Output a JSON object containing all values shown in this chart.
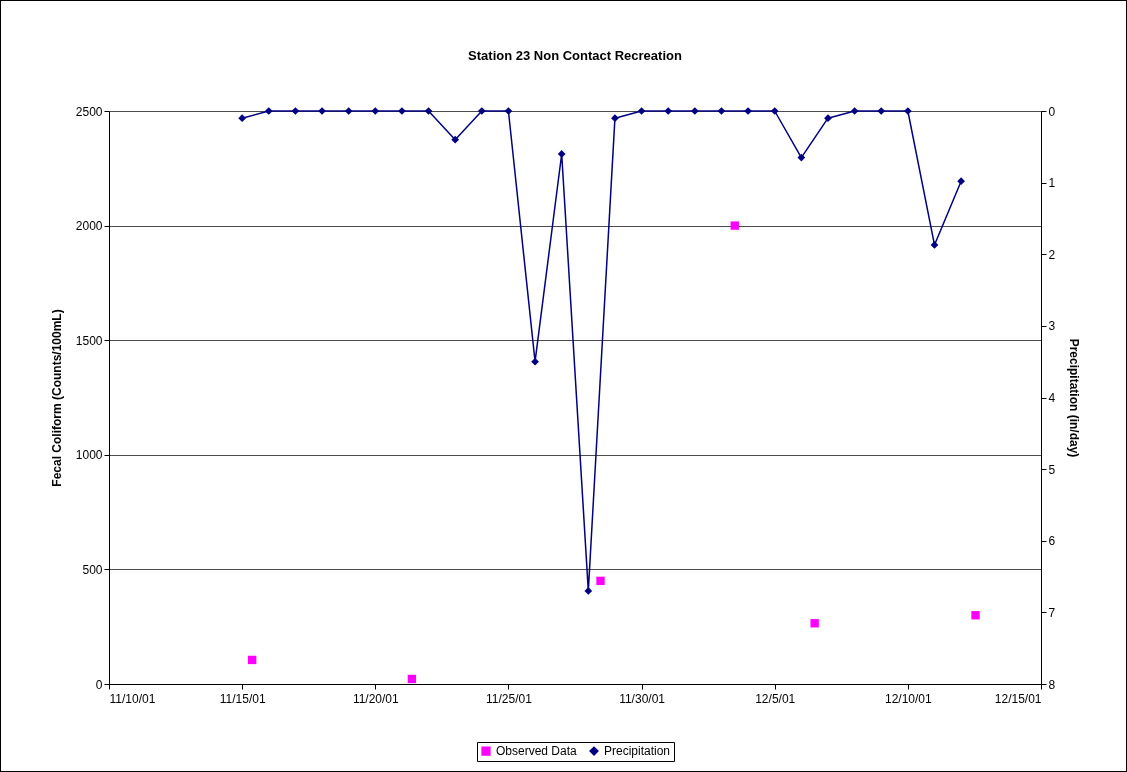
{
  "chart_data": {
    "type": "line",
    "title": "Station 23 Non Contact Recreation",
    "ylabel": "Fecal Coliform (Counts/100mL)",
    "y2label": "Precipitation (in/day)",
    "xlim": [
      "--11-10",
      "--12-15"
    ],
    "xticks": [
      {
        "value": "--11-10",
        "label": "11/10/01"
      },
      {
        "value": "--11-15",
        "label": "11/15/01"
      },
      {
        "value": "--11-20",
        "label": "11/20/01"
      },
      {
        "value": "--11-25",
        "label": "11/25/01"
      },
      {
        "value": "--11-30",
        "label": "11/30/01"
      },
      {
        "value": "--12-05",
        "label": "12/5/01"
      },
      {
        "value": "--12-10",
        "label": "12/10/01"
      },
      {
        "value": "--12-15",
        "label": "12/15/01"
      }
    ],
    "ylim": [
      0,
      2500
    ],
    "yticks": [
      0,
      500,
      1000,
      1500,
      2000,
      2500
    ],
    "y2lim": [
      8,
      0
    ],
    "y2ticks": [
      0,
      1,
      2,
      3,
      4,
      5,
      6,
      7,
      8
    ],
    "grid": "y",
    "legend": "bottom",
    "series": [
      {
        "name": "Observed Data",
        "type": "scatter",
        "marker": "square",
        "color": "#ff00ff",
        "x": [
          "--11-15T09:00",
          "--11-21T09:00",
          "--11-28T11:00",
          "--12-03T12:00",
          "--12-06T12:00",
          "--12-12T13:00"
        ],
        "values": [
          105,
          22,
          450,
          2000,
          265,
          300
        ]
      },
      {
        "name": "Precipitation",
        "marker": "diamond",
        "axis": "y2",
        "color": "#000080",
        "x": [
          "--11-15",
          "--11-16",
          "--11-17",
          "--11-18",
          "--11-19",
          "--11-20",
          "--11-21",
          "--11-22",
          "--11-23",
          "--11-24",
          "--11-25",
          "--11-26",
          "--11-27",
          "--11-28",
          "--11-29",
          "--11-30",
          "--12-01",
          "--12-02",
          "--12-03",
          "--12-04",
          "--12-05",
          "--12-06",
          "--12-07",
          "--12-08",
          "--12-09",
          "--12-10",
          "--12-11",
          "--12-12"
        ],
        "values": [
          0.1,
          0,
          0,
          0,
          0,
          0,
          0,
          0,
          0.4,
          0,
          0,
          3.5,
          0.6,
          6.7,
          0.1,
          0,
          0,
          0,
          0,
          0,
          0,
          0.65,
          0.1,
          0,
          0,
          0,
          1.87,
          0.98
        ]
      }
    ]
  }
}
